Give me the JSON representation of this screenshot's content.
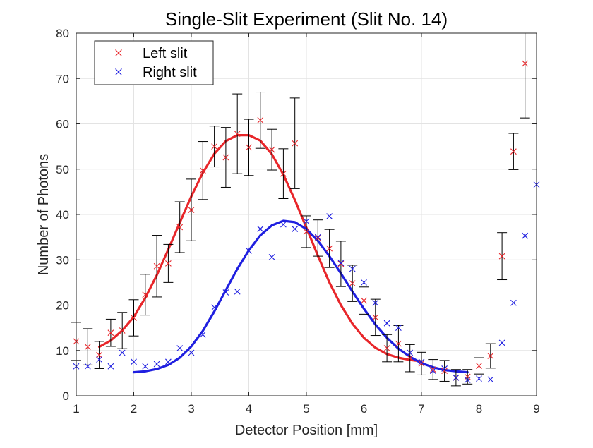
{
  "chart_data": {
    "type": "scatter",
    "title": "Single-Slit Experiment (Slit No. 14)",
    "xlabel": "Detector Position [mm]",
    "ylabel": "Number of Photons",
    "xlim": [
      1,
      9
    ],
    "ylim": [
      0,
      80
    ],
    "xticks": [
      "1",
      "2",
      "3",
      "4",
      "5",
      "6",
      "7",
      "8",
      "9"
    ],
    "yticks": [
      "0",
      "10",
      "20",
      "30",
      "40",
      "50",
      "60",
      "70",
      "80"
    ],
    "grid": true,
    "legend": {
      "placement": "top-left"
    },
    "series": [
      {
        "name": "Left slit",
        "color": "#e8262a",
        "marker": "x",
        "x": [
          1.0,
          1.2,
          1.4,
          1.6,
          1.8,
          2.0,
          2.2,
          2.4,
          2.6,
          2.8,
          3.0,
          3.2,
          3.4,
          3.6,
          3.8,
          4.0,
          4.2,
          4.4,
          4.6,
          4.8,
          5.0,
          5.2,
          5.4,
          5.6,
          5.8,
          6.0,
          6.2,
          6.4,
          6.6,
          6.8,
          7.0,
          7.2,
          7.4,
          7.6,
          7.8,
          8.0,
          8.2,
          8.4,
          8.6,
          8.8
        ],
        "y": [
          12.0,
          10.8,
          9.0,
          13.9,
          14.4,
          17.2,
          22.3,
          28.6,
          29.2,
          37.2,
          41.0,
          49.7,
          55.0,
          52.6,
          57.8,
          54.8,
          60.8,
          54.3,
          49.0,
          55.7,
          36.2,
          34.8,
          32.5,
          29.1,
          24.8,
          21.0,
          17.3,
          10.5,
          11.5,
          8.3,
          7.1,
          5.8,
          5.5,
          4.0,
          4.2,
          6.6,
          8.8,
          30.8,
          53.9,
          73.3
        ],
        "err": [
          4.2,
          4.0,
          3.0,
          3.0,
          4.0,
          4.0,
          4.5,
          6.8,
          4.2,
          5.6,
          6.8,
          6.4,
          4.5,
          6.6,
          8.8,
          6.2,
          6.2,
          4.5,
          5.5,
          10.0,
          3.5,
          4.0,
          4.2,
          5.0,
          4.0,
          3.0,
          4.0,
          3.0,
          4.0,
          3.0,
          2.5,
          2.2,
          2.3,
          1.8,
          1.6,
          1.8,
          2.7,
          5.2,
          4.0,
          12.0
        ]
      },
      {
        "name": "Right slit",
        "color": "#1f1fe0",
        "marker": "x",
        "x": [
          1.0,
          1.2,
          1.4,
          1.6,
          1.8,
          2.0,
          2.2,
          2.4,
          2.6,
          2.8,
          3.0,
          3.2,
          3.4,
          3.6,
          3.8,
          4.0,
          4.2,
          4.4,
          4.6,
          4.8,
          5.0,
          5.2,
          5.4,
          5.6,
          5.8,
          6.0,
          6.2,
          6.4,
          6.6,
          6.8,
          7.0,
          7.2,
          7.4,
          7.6,
          7.8,
          8.0,
          8.2,
          8.4,
          8.6,
          8.8,
          9.0
        ],
        "y": [
          6.5,
          6.5,
          8.0,
          6.5,
          9.5,
          7.5,
          6.5,
          7.0,
          7.5,
          10.5,
          9.5,
          13.5,
          19.5,
          22.8,
          23.0,
          32.0,
          36.8,
          30.6,
          37.8,
          36.8,
          38.5,
          35.0,
          39.6,
          29.3,
          28.0,
          25.0,
          20.5,
          16.0,
          15.0,
          9.5,
          7.5,
          5.5,
          6.0,
          4.0,
          3.5,
          3.8,
          3.6,
          11.7,
          20.5,
          35.3,
          46.6
        ]
      }
    ],
    "fits": [
      {
        "series": "Left slit",
        "color": "#e8262a",
        "x": [
          1.4,
          1.6,
          1.8,
          2.0,
          2.2,
          2.4,
          2.6,
          2.8,
          3.0,
          3.2,
          3.4,
          3.6,
          3.8,
          4.0,
          4.2,
          4.4,
          4.6,
          4.8,
          5.0,
          5.2,
          5.4,
          5.6,
          5.8,
          6.0,
          6.2,
          6.4,
          6.6,
          6.8,
          7.0
        ],
        "y": [
          10.8,
          12.2,
          14.4,
          17.4,
          21.6,
          26.6,
          32.3,
          38.2,
          44.0,
          49.2,
          53.4,
          56.2,
          57.5,
          57.5,
          56.3,
          53.3,
          48.8,
          43.2,
          37.1,
          30.9,
          25.0,
          20.0,
          15.9,
          12.8,
          10.6,
          9.2,
          8.4,
          7.9,
          7.6
        ]
      },
      {
        "series": "Right slit",
        "color": "#1f1fe0",
        "x": [
          2.0,
          2.2,
          2.4,
          2.6,
          2.8,
          3.0,
          3.2,
          3.4,
          3.6,
          3.8,
          4.0,
          4.2,
          4.4,
          4.6,
          4.8,
          5.0,
          5.2,
          5.4,
          5.6,
          5.8,
          6.0,
          6.2,
          6.4,
          6.6,
          6.8,
          7.0,
          7.2,
          7.4,
          7.6,
          7.8
        ],
        "y": [
          5.2,
          5.4,
          5.9,
          6.8,
          8.4,
          10.9,
          14.3,
          18.6,
          23.3,
          28.0,
          32.1,
          35.4,
          37.6,
          38.6,
          38.3,
          36.8,
          34.2,
          30.8,
          27.0,
          23.0,
          19.2,
          15.7,
          12.8,
          10.4,
          8.6,
          7.2,
          6.3,
          5.7,
          5.4,
          5.2
        ]
      }
    ]
  }
}
